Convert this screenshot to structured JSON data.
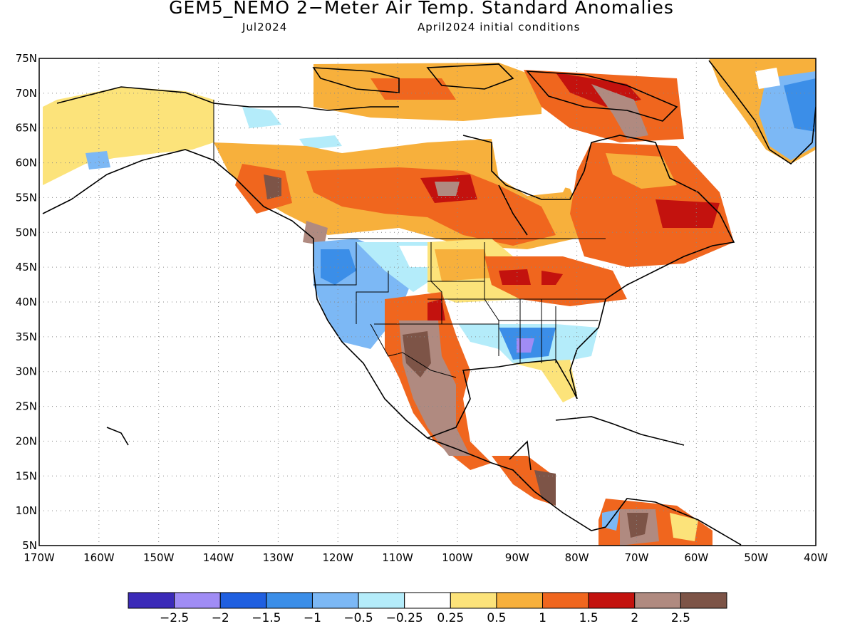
{
  "title": "GEM5_NEMO 2−Meter Air Temp. Standard Anomalies",
  "valid_month": "Jul2024",
  "init_conditions": "April2024 initial conditions",
  "map": {
    "lat_labels": [
      "75N",
      "70N",
      "65N",
      "60N",
      "55N",
      "50N",
      "45N",
      "40N",
      "35N",
      "30N",
      "25N",
      "20N",
      "15N",
      "10N",
      "5N"
    ],
    "lon_labels": [
      "170W",
      "160W",
      "150W",
      "140W",
      "130W",
      "120W",
      "110W",
      "100W",
      "90W",
      "80W",
      "70W",
      "60W",
      "50W",
      "40W"
    ],
    "lat_range": [
      5,
      75
    ],
    "lon_range": [
      -170,
      -40
    ],
    "grid": "dotted"
  },
  "colorbar": {
    "colors": [
      "#3b2ab8",
      "#a08cf5",
      "#1f5fe0",
      "#3b8ee8",
      "#7cb8f5",
      "#b4ecfa",
      "#ffffff",
      "#fce37a",
      "#f7b03c",
      "#f0661e",
      "#c3120e",
      "#b08a80",
      "#7d5447"
    ],
    "labels": [
      "−2.5",
      "−2",
      "−1.5",
      "−1",
      "−0.5",
      "−0.25",
      "0.25",
      "0.5",
      "1",
      "1.5",
      "2",
      "2.5"
    ]
  }
}
